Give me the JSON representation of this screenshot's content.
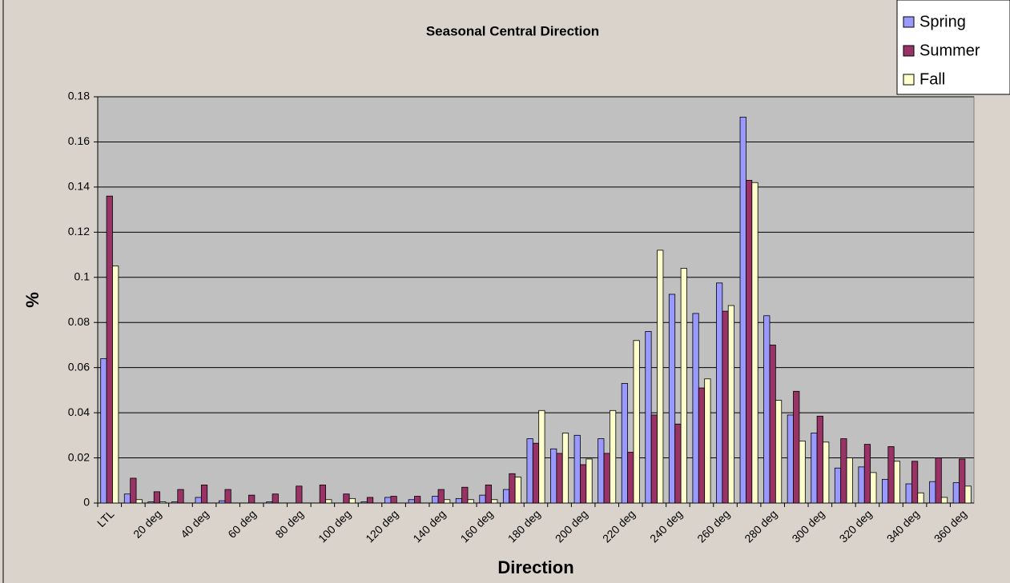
{
  "chart_data": {
    "type": "bar",
    "title": "Seasonal Central Direction",
    "x_label": "Direction",
    "y_label": "%",
    "categories": [
      "LTL",
      null,
      "20 deg",
      null,
      "40 deg",
      null,
      "60 deg",
      null,
      "80 deg",
      null,
      "100 deg",
      null,
      "120 deg",
      null,
      "140 deg",
      null,
      "160 deg",
      null,
      "180 deg",
      null,
      "200 deg",
      null,
      "220 deg",
      null,
      "240 deg",
      null,
      "260 deg",
      null,
      "280 deg",
      null,
      "300 deg",
      null,
      "320 deg",
      null,
      "340 deg",
      null,
      "360 deg"
    ],
    "series": [
      {
        "name": "Spring",
        "color": "#9999ff",
        "values": [
          0.064,
          0.004,
          0.0005,
          0.0005,
          0.0025,
          0.001,
          0,
          0.0005,
          0,
          0,
          0,
          0.0005,
          0.0025,
          0.0015,
          0.003,
          0.002,
          0.0035,
          0.006,
          0.0285,
          0.024,
          0.03,
          0.0285,
          0.053,
          0.076,
          0.0925,
          0.084,
          0.0975,
          0.171,
          0.083,
          0.039,
          0.031,
          0.0155,
          0.016,
          0.0105,
          0.0085,
          0.0095,
          0.009
        ]
      },
      {
        "name": "Summer",
        "color": "#993366",
        "values": [
          0.136,
          0.011,
          0.005,
          0.006,
          0.008,
          0.006,
          0.0035,
          0.004,
          0.0075,
          0.008,
          0.004,
          0.0025,
          0.003,
          0.003,
          0.006,
          0.007,
          0.008,
          0.013,
          0.0265,
          0.022,
          0.017,
          0.022,
          0.0225,
          0.039,
          0.035,
          0.051,
          0.085,
          0.143,
          0.07,
          0.0495,
          0.0385,
          0.0285,
          0.026,
          0.025,
          0.0185,
          0.02,
          0.0195
        ]
      },
      {
        "name": "Fall",
        "color": "#ffffcc",
        "values": [
          0.105,
          0.0015,
          0.0005,
          0,
          0,
          0,
          0,
          0,
          0,
          0.0015,
          0.002,
          0,
          0,
          0,
          0.0015,
          0.0015,
          0.0015,
          0.0115,
          0.041,
          0.031,
          0.0195,
          0.041,
          0.072,
          0.112,
          0.104,
          0.055,
          0.0875,
          0.142,
          0.0455,
          0.0275,
          0.027,
          0.02,
          0.0135,
          0.0185,
          0.0045,
          0.0025,
          0.0075
        ]
      }
    ],
    "ylim": [
      0,
      0.18
    ],
    "yticks": [
      0,
      0.02,
      0.04,
      0.06,
      0.08,
      0.1,
      0.12,
      0.14,
      0.16,
      0.18
    ],
    "grid": true,
    "legend": "top-right"
  }
}
